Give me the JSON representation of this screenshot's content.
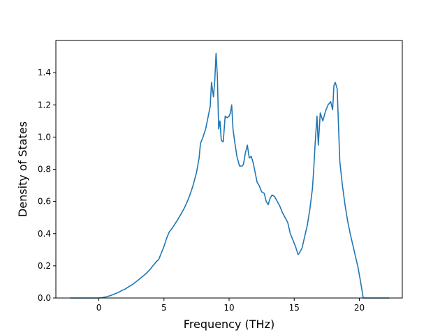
{
  "chart_data": {
    "type": "line",
    "title": "",
    "xlabel": "Frequency (THz)",
    "ylabel": "Density of States",
    "xlim": [
      -3.3,
      23.3
    ],
    "ylim": [
      0.0,
      1.6
    ],
    "xticks": [
      0,
      5,
      10,
      15,
      20
    ],
    "xtick_labels": [
      "0",
      "5",
      "10",
      "15",
      "20"
    ],
    "yticks": [
      0.0,
      0.2,
      0.4,
      0.6,
      0.8,
      1.0,
      1.2,
      1.4
    ],
    "ytick_labels": [
      "0.0",
      "0.2",
      "0.4",
      "0.6",
      "0.8",
      "1.0",
      "1.2",
      "1.4"
    ],
    "grid": false,
    "series": [
      {
        "color": "#1f77b4",
        "x": [
          -2.2,
          -1.0,
          0.0,
          0.3,
          0.6,
          0.9,
          1.2,
          1.5,
          1.8,
          2.0,
          2.3,
          2.6,
          3.0,
          3.3,
          3.6,
          3.9,
          4.2,
          4.4,
          4.6,
          4.8,
          5.0,
          5.2,
          5.4,
          5.6,
          5.8,
          6.0,
          6.3,
          6.6,
          6.9,
          7.2,
          7.5,
          7.7,
          7.8,
          8.0,
          8.2,
          8.3,
          8.4,
          8.55,
          8.65,
          8.8,
          8.9,
          9.0,
          9.1,
          9.2,
          9.3,
          9.4,
          9.55,
          9.7,
          9.85,
          10.0,
          10.1,
          10.2,
          10.3,
          10.45,
          10.6,
          10.8,
          11.0,
          11.1,
          11.25,
          11.4,
          11.55,
          11.7,
          11.85,
          12.0,
          12.15,
          12.3,
          12.5,
          12.7,
          12.85,
          13.0,
          13.15,
          13.3,
          13.5,
          13.7,
          13.9,
          14.1,
          14.3,
          14.5,
          14.7,
          14.9,
          15.1,
          15.3,
          15.4,
          15.6,
          15.8,
          16.0,
          16.2,
          16.4,
          16.5,
          16.6,
          16.75,
          16.85,
          17.0,
          17.2,
          17.4,
          17.6,
          17.8,
          17.95,
          18.05,
          18.15,
          18.3,
          18.5,
          18.7,
          18.9,
          19.1,
          19.3,
          19.5,
          19.7,
          19.9,
          20.1,
          20.3,
          20.6,
          21.0,
          22.3
        ],
        "y": [
          0.0,
          0.0,
          0.0,
          0.003,
          0.008,
          0.015,
          0.025,
          0.035,
          0.048,
          0.055,
          0.07,
          0.085,
          0.11,
          0.13,
          0.15,
          0.175,
          0.205,
          0.225,
          0.24,
          0.28,
          0.32,
          0.37,
          0.41,
          0.43,
          0.455,
          0.48,
          0.52,
          0.565,
          0.62,
          0.69,
          0.78,
          0.87,
          0.96,
          1.0,
          1.05,
          1.09,
          1.13,
          1.19,
          1.34,
          1.25,
          1.35,
          1.52,
          1.38,
          1.05,
          1.1,
          0.98,
          0.97,
          1.13,
          1.12,
          1.13,
          1.15,
          1.2,
          1.05,
          0.96,
          0.88,
          0.82,
          0.82,
          0.83,
          0.9,
          0.95,
          0.87,
          0.88,
          0.84,
          0.78,
          0.72,
          0.7,
          0.66,
          0.65,
          0.6,
          0.58,
          0.62,
          0.64,
          0.63,
          0.6,
          0.57,
          0.53,
          0.5,
          0.47,
          0.4,
          0.36,
          0.32,
          0.27,
          0.28,
          0.31,
          0.38,
          0.45,
          0.55,
          0.68,
          0.8,
          0.95,
          1.13,
          0.95,
          1.15,
          1.1,
          1.16,
          1.2,
          1.22,
          1.17,
          1.32,
          1.34,
          1.3,
          0.85,
          0.7,
          0.58,
          0.48,
          0.4,
          0.33,
          0.26,
          0.19,
          0.1,
          0.0,
          0.0,
          0.0,
          0.0
        ]
      }
    ]
  }
}
